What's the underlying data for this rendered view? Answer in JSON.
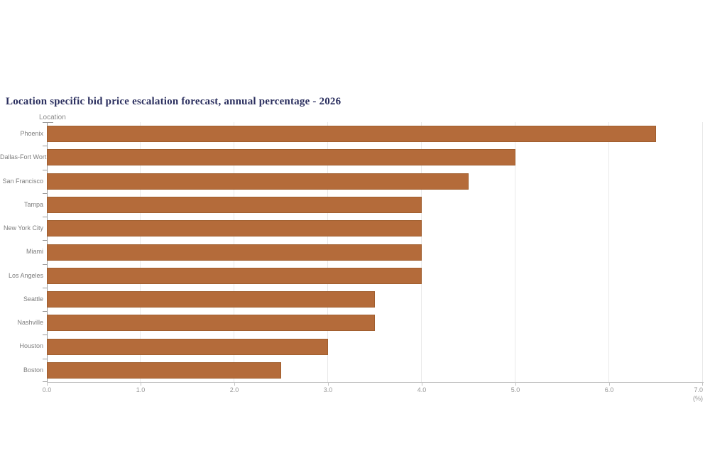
{
  "title": "Location specific bid price escalation forecast, annual percentage - 2026",
  "chart_data": {
    "type": "bar",
    "orientation": "horizontal",
    "title": "Location specific bid price escalation forecast, annual percentage - 2026",
    "y_axis_title": "Location",
    "categories": [
      "Phoenix",
      "Dallas-Fort Worth",
      "San Francisco",
      "Tampa",
      "New York City",
      "Miami",
      "Los Angeles",
      "Seattle",
      "Nashville",
      "Houston",
      "Boston"
    ],
    "values": [
      6.5,
      5.0,
      4.5,
      4.0,
      4.0,
      4.0,
      4.0,
      3.5,
      3.5,
      3.0,
      2.5
    ],
    "xlabel": "(%)",
    "x_ticks": [
      "0.0",
      "1.0",
      "2.0",
      "3.0",
      "4.0",
      "5.0",
      "6.0",
      "7.0"
    ],
    "xlim": [
      0,
      7
    ],
    "grid": "vertical-only",
    "legend": "none",
    "colors": {
      "bar_fill": "#b46b3a",
      "bar_border": "#a05e2e",
      "title_text": "#2a2e5e",
      "axis_line": "#9a9a9a",
      "x_axis_line": "#c4c4c4",
      "gridline": "#e9e9e9",
      "tick_label": "#969696",
      "category_label": "#7d7d7d"
    }
  }
}
